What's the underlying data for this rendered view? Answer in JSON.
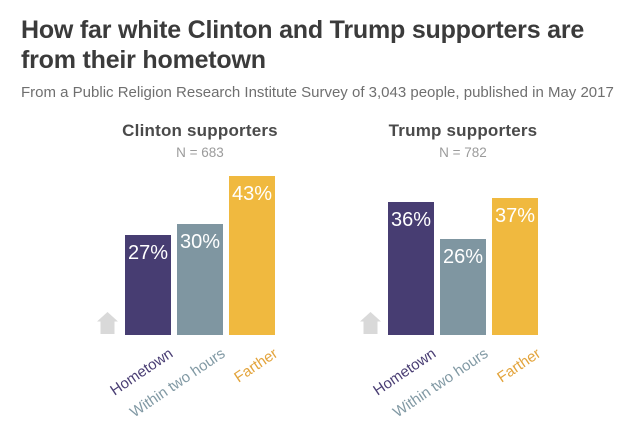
{
  "header": {
    "title": "How far white Clinton and Trump supporters are from their hometown",
    "subtitle": "From a Public Religion Research Institute Survey of 3,043 people, published in May 2017"
  },
  "colors": {
    "bar_colors": [
      "#473d72",
      "#7f96a1",
      "#f0b93f"
    ],
    "category_label_colors": [
      "#4a3e74",
      "#8199a4",
      "#e3a43c"
    ],
    "house_icon": "#d9d9d9",
    "title_text": "#3b3b3b",
    "subtitle_text": "#6f6f6f",
    "panel_title_text": "#4a4a4a",
    "n_label_text": "#9b9b9b",
    "bar_value_text": "#ffffff"
  },
  "chart_data": [
    {
      "type": "bar",
      "title": "Clinton supporters",
      "n_label": "N = 683",
      "categories": [
        "Hometown",
        "Within two hours",
        "Farther"
      ],
      "values": [
        27,
        30,
        43
      ],
      "bar_labels": [
        "27%",
        "30%",
        "43%"
      ],
      "ylim": [
        0,
        45
      ],
      "grid": false,
      "legend": "none",
      "value_label_position": "inside-top",
      "category_label_rotation_deg": -34
    },
    {
      "type": "bar",
      "title": "Trump supporters",
      "n_label": "N = 782",
      "categories": [
        "Hometown",
        "Within two hours",
        "Farther"
      ],
      "values": [
        36,
        26,
        37
      ],
      "bar_labels": [
        "36%",
        "26%",
        "37%"
      ],
      "ylim": [
        0,
        45
      ],
      "grid": false,
      "legend": "none",
      "value_label_position": "inside-top",
      "category_label_rotation_deg": -34
    }
  ]
}
